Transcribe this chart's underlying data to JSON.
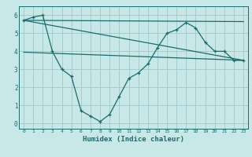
{
  "line1_x": [
    0,
    23
  ],
  "line1_y": [
    5.72,
    5.65
  ],
  "line2_x": [
    0,
    23
  ],
  "line2_y": [
    5.72,
    3.5
  ],
  "line3_x": [
    0,
    23
  ],
  "line3_y": [
    3.95,
    3.5
  ],
  "line4_x": [
    0,
    1,
    2,
    3,
    4,
    5,
    6,
    7,
    8,
    9,
    10,
    11,
    12,
    13,
    14,
    15,
    16,
    17,
    18,
    19,
    20,
    21,
    22,
    23
  ],
  "line4_y": [
    5.72,
    5.9,
    6.0,
    4.0,
    3.0,
    2.6,
    0.7,
    0.4,
    0.1,
    0.5,
    1.5,
    2.5,
    2.8,
    3.3,
    4.2,
    5.0,
    5.2,
    5.6,
    5.3,
    4.5,
    4.0,
    4.0,
    3.5,
    3.5
  ],
  "color": "#1a6b6b",
  "bg_color": "#c8e8e8",
  "grid_color": "#a0c8c8",
  "xlabel": "Humidex (Indice chaleur)",
  "ylim": [
    -0.3,
    6.5
  ],
  "xlim": [
    -0.5,
    23.5
  ],
  "yticks": [
    0,
    1,
    2,
    3,
    4,
    5,
    6
  ],
  "xticks": [
    0,
    1,
    2,
    3,
    4,
    5,
    6,
    7,
    8,
    9,
    10,
    11,
    12,
    13,
    14,
    15,
    16,
    17,
    18,
    19,
    20,
    21,
    22,
    23
  ]
}
